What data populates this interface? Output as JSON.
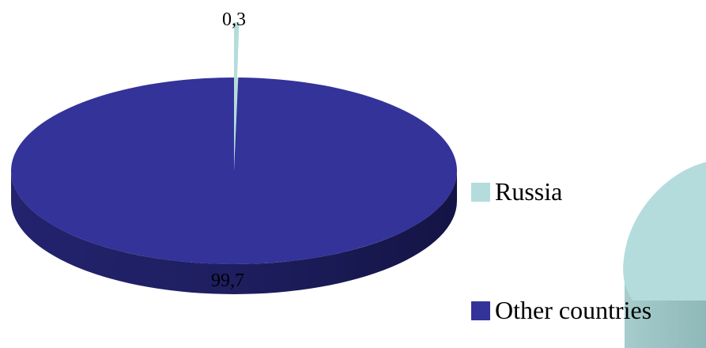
{
  "chart_data": {
    "type": "pie",
    "title": "",
    "categories": [
      "Russia",
      "Other countries"
    ],
    "values": [
      0.3,
      99.7
    ],
    "data_labels": [
      "0,3",
      "99,7"
    ],
    "colors": [
      "#b4dcdc",
      "#333399"
    ],
    "legend": {
      "placement": "right",
      "entries": [
        "Russia",
        "Other countries"
      ]
    },
    "style": "3d"
  }
}
